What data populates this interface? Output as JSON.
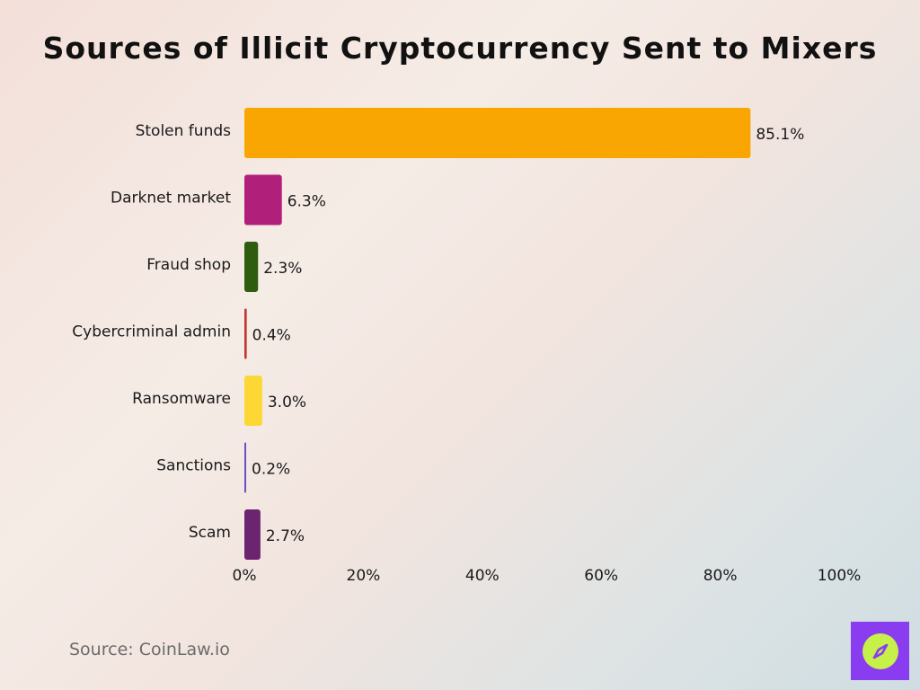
{
  "source": "Source: CoinLaw.io",
  "logo_icon": "compass-icon",
  "chart_data": {
    "type": "bar",
    "orientation": "horizontal",
    "title": "Sources of Illicit Cryptocurrency Sent to Mixers",
    "xlabel": "",
    "ylabel": "",
    "xlim": [
      0,
      100
    ],
    "x_ticks": [
      "0%",
      "20%",
      "40%",
      "60%",
      "80%",
      "100%"
    ],
    "grid": false,
    "categories": [
      "Stolen funds",
      "Darknet market",
      "Fraud shop",
      "Cybercriminal admin",
      "Ransomware",
      "Sanctions",
      "Scam"
    ],
    "values": [
      85.1,
      6.3,
      2.3,
      0.4,
      3.0,
      0.2,
      2.7
    ],
    "value_labels": [
      "85.1%",
      "6.3%",
      "2.3%",
      "0.4%",
      "3.0%",
      "0.2%",
      "2.7%"
    ],
    "colors": [
      "#f9a602",
      "#b01f7a",
      "#2e5d10",
      "#c2382e",
      "#fdd835",
      "#6a4fc8",
      "#6b2470"
    ]
  }
}
